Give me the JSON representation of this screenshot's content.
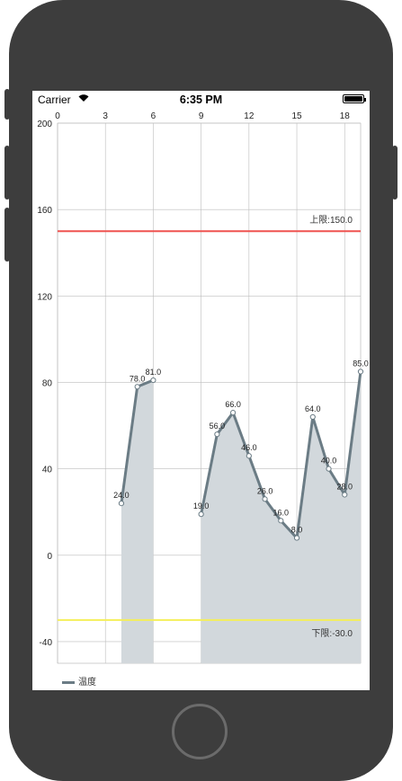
{
  "status_bar": {
    "carrier": "Carrier",
    "time": "6:35 PM"
  },
  "chart_data": {
    "type": "line",
    "x_ticks": [
      "0",
      "3",
      "6",
      "9",
      "12",
      "15",
      "18"
    ],
    "y_ticks": [
      "200",
      "160",
      "120",
      "80",
      "40",
      "0",
      "-40"
    ],
    "xlim": [
      0,
      19
    ],
    "ylim": [
      -50,
      200
    ],
    "grid": true,
    "legend_position": "bottom-left",
    "series": [
      {
        "name": "温度",
        "color": "#6b7c85",
        "fill": "#d2d8dc",
        "segments": [
          [
            {
              "x": 4,
              "y": 24,
              "label": "24.0"
            },
            {
              "x": 5,
              "y": 78,
              "label": "78.0"
            },
            {
              "x": 6,
              "y": 81,
              "label": "81.0"
            }
          ],
          [
            {
              "x": 9,
              "y": 19,
              "label": "19.0"
            },
            {
              "x": 10,
              "y": 56,
              "label": "56.0"
            },
            {
              "x": 11,
              "y": 66,
              "label": "66.0"
            },
            {
              "x": 12,
              "y": 46,
              "label": "46.0"
            },
            {
              "x": 13,
              "y": 26,
              "label": "26.0"
            },
            {
              "x": 14,
              "y": 16,
              "label": "16.0"
            },
            {
              "x": 15,
              "y": 8,
              "label": "8.0"
            },
            {
              "x": 16,
              "y": 64,
              "label": "64.0"
            },
            {
              "x": 17,
              "y": 40,
              "label": "40.0"
            },
            {
              "x": 18,
              "y": 28,
              "label": "28.0"
            },
            {
              "x": 19,
              "y": 85,
              "label": "85.0"
            }
          ]
        ]
      }
    ],
    "limit_lines": [
      {
        "value": 150,
        "label": "上限:150.0",
        "color": "#ef5350"
      },
      {
        "value": -30,
        "label": "下限:-30.0",
        "color": "#f5ef5a"
      }
    ]
  }
}
